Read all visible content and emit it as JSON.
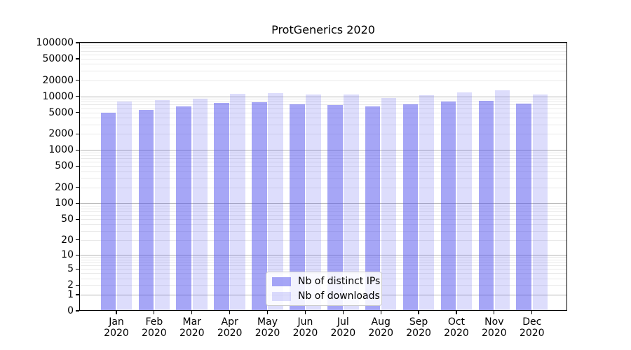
{
  "figure": {
    "title": "ProtGenerics 2020"
  },
  "chart_data": {
    "type": "bar",
    "title": "ProtGenerics 2020",
    "categories": [
      "Jan 2020",
      "Feb 2020",
      "Mar 2020",
      "Apr 2020",
      "May 2020",
      "Jun 2020",
      "Jul 2020",
      "Aug 2020",
      "Sep 2020",
      "Oct 2020",
      "Nov 2020",
      "Dec 2020"
    ],
    "series": [
      {
        "name": "Nb of distinct IPs",
        "color": "rgba(77,77,238,0.50)",
        "values": [
          5000,
          5500,
          6400,
          7500,
          7700,
          7200,
          6900,
          6400,
          7200,
          8000,
          8300,
          7400
        ]
      },
      {
        "name": "Nb of downloads",
        "color": "rgba(77,77,238,0.19)",
        "values": [
          8000,
          8500,
          9100,
          11200,
          11400,
          10900,
          10700,
          9200,
          10500,
          12000,
          12900,
          10900
        ]
      }
    ],
    "xlabel": "",
    "ylabel": "",
    "yscale": "log1p",
    "ylim": [
      0,
      100000
    ],
    "yticks": [
      0,
      1,
      2,
      5,
      10,
      20,
      50,
      100,
      200,
      500,
      1000,
      2000,
      5000,
      10000,
      20000,
      50000,
      100000
    ],
    "grid": "on",
    "legend_position": "lower-center"
  },
  "colors": {
    "major_grid": "#b4b4b4",
    "minor_grid": "#e9e9e9",
    "spine": "#000000",
    "background": "#ffffff"
  },
  "legend": {
    "items": [
      "Nb of distinct IPs",
      "Nb of downloads"
    ]
  }
}
